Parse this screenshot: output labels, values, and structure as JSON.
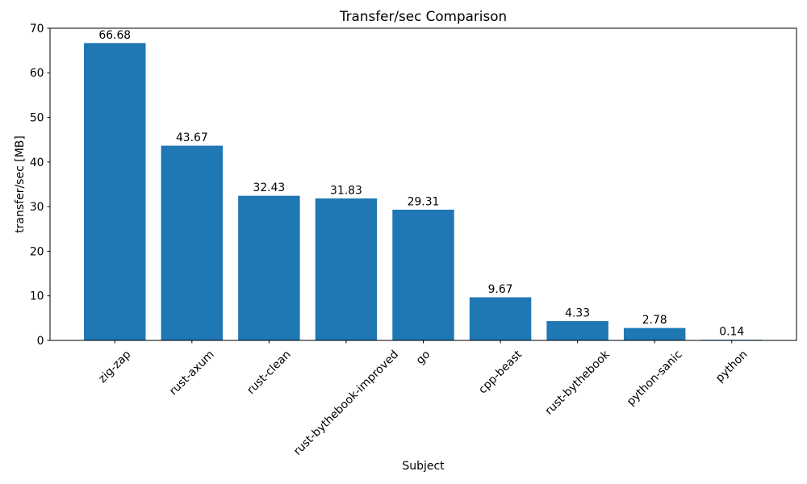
{
  "figure": {
    "background_color": "#ffffff",
    "text_color": "#000000"
  },
  "chart_data": {
    "type": "bar",
    "title": "Transfer/sec Comparison",
    "xlabel": "Subject",
    "ylabel": "transfer/sec [MB]",
    "categories": [
      "zig-zap",
      "rust-axum",
      "rust-clean",
      "rust-bythebook-improved",
      "go",
      "cpp-beast",
      "rust-bythebook",
      "python-sanic",
      "python"
    ],
    "values": [
      66.68,
      43.67,
      32.43,
      31.83,
      29.31,
      9.67,
      4.33,
      2.78,
      0.14
    ],
    "bar_labels": [
      "66.68",
      "43.67",
      "32.43",
      "31.83",
      "29.31",
      "9.67",
      "4.33",
      "2.78",
      "0.14"
    ],
    "y_ticks": [
      0,
      10,
      20,
      30,
      40,
      50,
      60,
      70
    ],
    "ylim": [
      0,
      70
    ],
    "bar_color": "#1f77b4",
    "axis_color": "#000000",
    "grid": false,
    "legend": null,
    "x_tick_rotation_deg": 45
  }
}
